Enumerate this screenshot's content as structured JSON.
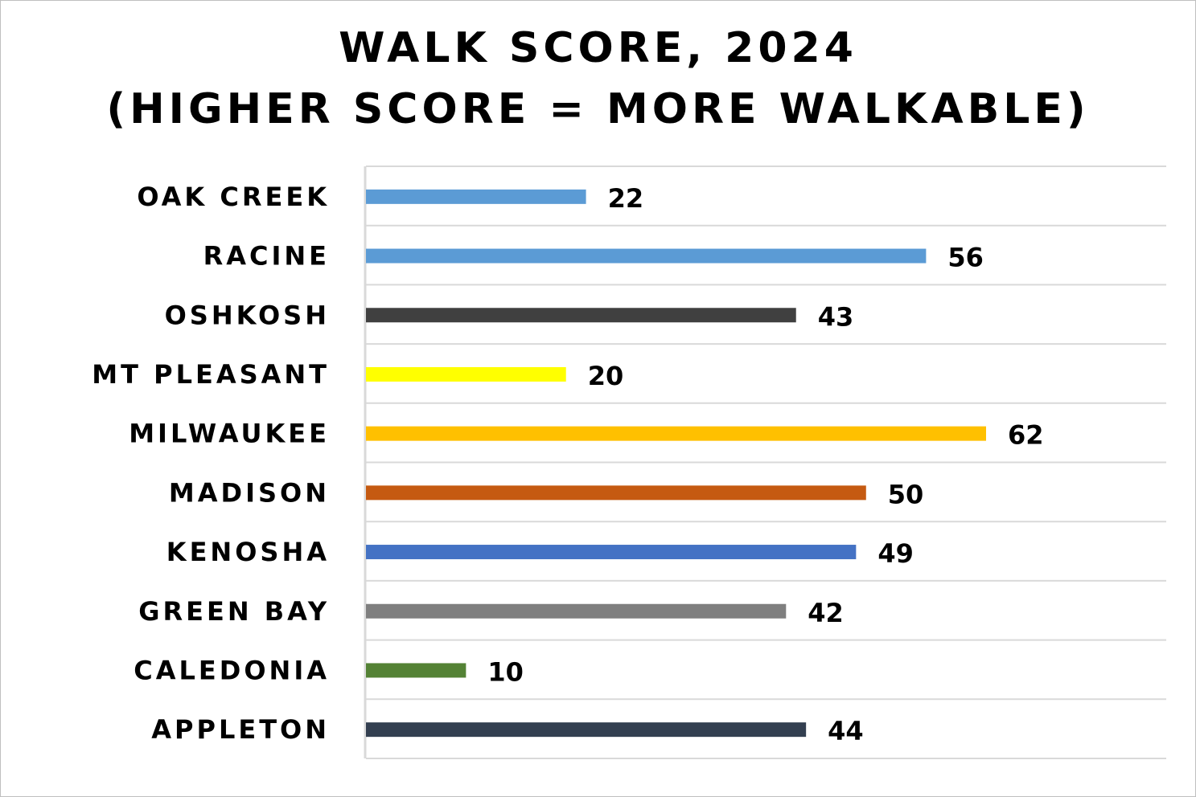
{
  "chart_data": {
    "type": "bar",
    "orientation": "horizontal",
    "title_line1": "WALK SCORE, 2024",
    "title_line2": "(HIGHER SCORE = MORE WALKABLE)",
    "categories": [
      "OAK CREEK",
      "RACINE",
      "OSHKOSH",
      "MT PLEASANT",
      "MILWAUKEE",
      "MADISON",
      "KENOSHA",
      "GREEN BAY",
      "CALEDONIA",
      "APPLETON"
    ],
    "values": [
      22,
      56,
      43,
      20,
      62,
      50,
      49,
      42,
      10,
      44
    ],
    "colors": [
      "#5B9BD5",
      "#5B9BD5",
      "#404040",
      "#FFFF00",
      "#FFC000",
      "#C55A11",
      "#4472C4",
      "#7F7F7F",
      "#548235",
      "#333F50"
    ],
    "xlim": [
      0,
      80
    ],
    "grid": true,
    "data_labels": true,
    "legend": "none"
  }
}
